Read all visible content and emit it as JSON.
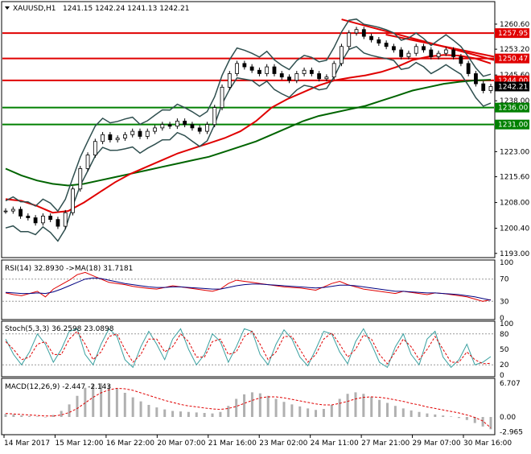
{
  "chart_data": [
    {
      "panel": "price",
      "type": "candlestick",
      "header": {
        "symbol_tf": "XAUUSD,H1",
        "ohlc": "1241.15 1242.24 1241.13 1242.21"
      },
      "price_labels": [
        "1260.60",
        "1253.20",
        "1245.60",
        "1238.00",
        "1230.60",
        "1223.00",
        "1215.60",
        "1208.00",
        "1200.40",
        "1193.00"
      ],
      "ylim": [
        1192.0,
        1267.0
      ],
      "tags": [
        {
          "text": "1257.95",
          "value": 1257.95,
          "color": "#e00000",
          "text_color": "#ffffff"
        },
        {
          "text": "1250.47",
          "value": 1250.47,
          "color": "#e00000",
          "text_color": "#ffffff"
        },
        {
          "text": "1244.00",
          "value": 1244.0,
          "color": "#e00000",
          "text_color": "#ffffff"
        },
        {
          "text": "1242.21",
          "value": 1242.21,
          "color": "#000000",
          "text_color": "#ffffff"
        },
        {
          "text": "1236.00",
          "value": 1236.0,
          "color": "#008000",
          "text_color": "#ffffff"
        },
        {
          "text": "1231.00",
          "value": 1231.0,
          "color": "#008000",
          "text_color": "#ffffff"
        }
      ],
      "hlines": [
        {
          "value": 1257.95,
          "color": "#e00000"
        },
        {
          "value": 1250.47,
          "color": "#e00000"
        },
        {
          "value": 1244.0,
          "color": "#e00000"
        },
        {
          "value": 1236.0,
          "color": "#008000"
        },
        {
          "value": 1231.0,
          "color": "#008000"
        }
      ],
      "close_path": [
        1205.5,
        1206,
        1204,
        1203.5,
        1202,
        1204,
        1203,
        1201,
        1205,
        1212,
        1218,
        1222,
        1226,
        1228,
        1226.5,
        1227,
        1228,
        1229,
        1227.5,
        1229,
        1230,
        1231,
        1230.5,
        1232,
        1231,
        1230,
        1229,
        1231,
        1236,
        1242,
        1246,
        1249,
        1248,
        1247,
        1246,
        1248,
        1246,
        1245,
        1244,
        1246,
        1247,
        1246,
        1244.5,
        1245,
        1249,
        1254,
        1258,
        1259,
        1257,
        1256,
        1255,
        1254,
        1253,
        1251,
        1252,
        1254,
        1253,
        1251,
        1252,
        1253,
        1251,
        1249,
        1246,
        1243,
        1241,
        1242.2
      ],
      "sma200_path": [
        1218,
        1216,
        1214.5,
        1213.5,
        1213,
        1213.5,
        1214.5,
        1215.5,
        1216.5,
        1217.5,
        1218.5,
        1219.5,
        1220.5,
        1221.5,
        1223,
        1224.5,
        1226,
        1228,
        1230,
        1232,
        1233.5,
        1234.5,
        1235.5,
        1236.5,
        1238,
        1239.5,
        1241,
        1242,
        1243,
        1243.6,
        1244,
        1244.2
      ],
      "sma50_path": [
        1209,
        1208.5,
        1207,
        1205,
        1205.5,
        1208,
        1211,
        1214,
        1216.5,
        1218.5,
        1220.5,
        1222.5,
        1224,
        1225.5,
        1227,
        1229,
        1232,
        1236,
        1238.5,
        1240.5,
        1242.5,
        1244,
        1244.8,
        1245.5,
        1246.5,
        1248,
        1250,
        1251,
        1251.5,
        1251.3,
        1250.5,
        1249
      ],
      "trendlines": [
        {
          "from": [
            0.69,
            1262.0
          ],
          "to": [
            1.0,
            1250.0
          ],
          "color": "#e00000"
        },
        {
          "from": [
            0.78,
            1257.5
          ],
          "to": [
            1.0,
            1251.0
          ],
          "color": "#e00000"
        }
      ],
      "x_labels": [
        "14 Mar 2017",
        "15 Mar 12:00",
        "16 Mar 22:00",
        "20 Mar 07:00",
        "21 Mar 16:00",
        "23 Mar 02:00",
        "24 Mar 11:00",
        "27 Mar 21:00",
        "29 Mar 07:00",
        "30 Mar 16:00"
      ]
    },
    {
      "panel": "rsi",
      "type": "line",
      "header": "RSI(14) 32.8930  ->MA(18) 31.7181",
      "ylim": [
        0,
        100
      ],
      "levels": [
        70,
        30
      ],
      "tick_labels": [
        "100",
        "70",
        "30",
        "0"
      ],
      "series": [
        {
          "color": "#e00000",
          "values": [
            45,
            42,
            40,
            44,
            48,
            38,
            52,
            60,
            68,
            78,
            82,
            76,
            70,
            64,
            62,
            60,
            57,
            55,
            53,
            52,
            55,
            58,
            56,
            54,
            52,
            50,
            48,
            52,
            62,
            68,
            66,
            64,
            62,
            60,
            58,
            56,
            55,
            54,
            52,
            50,
            56,
            62,
            66,
            60,
            56,
            52,
            50,
            48,
            46,
            44,
            48,
            46,
            44,
            42,
            45,
            44,
            42,
            40,
            38,
            34,
            30,
            33
          ]
        },
        {
          "color": "#000080",
          "values": [
            46,
            45,
            44,
            44,
            45,
            44,
            47,
            52,
            58,
            64,
            70,
            72,
            71,
            68,
            65,
            62,
            60,
            58,
            56,
            55,
            55,
            56,
            56,
            55,
            54,
            53,
            52,
            52,
            55,
            58,
            60,
            61,
            61,
            60,
            59,
            58,
            57,
            56,
            55,
            54,
            55,
            57,
            59,
            59,
            58,
            56,
            54,
            52,
            50,
            48,
            48,
            47,
            46,
            45,
            45,
            44,
            43,
            42,
            40,
            38,
            35,
            32
          ]
        }
      ]
    },
    {
      "panel": "stochastic",
      "type": "line",
      "header": "Stoch(5,3,3) 36.2598 23.0898",
      "ylim": [
        0,
        100
      ],
      "levels": [
        80,
        20
      ],
      "tick_labels": [
        "100",
        "80",
        "50",
        "20",
        "0"
      ],
      "series": [
        {
          "color": "#3aa0a0",
          "values": [
            70,
            40,
            20,
            45,
            80,
            60,
            25,
            50,
            85,
            90,
            40,
            20,
            60,
            90,
            75,
            30,
            15,
            55,
            85,
            60,
            30,
            70,
            90,
            50,
            20,
            40,
            80,
            65,
            25,
            55,
            90,
            85,
            40,
            20,
            60,
            88,
            70,
            35,
            18,
            50,
            85,
            80,
            45,
            22,
            65,
            90,
            60,
            25,
            15,
            55,
            80,
            40,
            20,
            70,
            85,
            35,
            15,
            30,
            60,
            20,
            25,
            36
          ]
        },
        {
          "color": "#e00000",
          "values": [
            65,
            50,
            30,
            35,
            60,
            65,
            40,
            40,
            70,
            85,
            60,
            30,
            45,
            75,
            80,
            50,
            25,
            40,
            70,
            70,
            45,
            55,
            80,
            65,
            35,
            35,
            65,
            70,
            40,
            45,
            75,
            85,
            60,
            30,
            45,
            75,
            75,
            50,
            25,
            40,
            70,
            82,
            60,
            35,
            50,
            78,
            70,
            40,
            22,
            45,
            70,
            55,
            30,
            50,
            75,
            50,
            25,
            25,
            45,
            30,
            22,
            23
          ]
        }
      ]
    },
    {
      "panel": "macd",
      "type": "bar",
      "header": "MACD(12,26,9) -2.447 -2.143",
      "ylim": [
        -3.2,
        7.2
      ],
      "tick_labels": [
        "6.707",
        "0.00",
        "-2.965"
      ],
      "histogram": [
        0.6,
        0.5,
        0.3,
        0.2,
        0.1,
        0.0,
        0.4,
        1.2,
        2.5,
        4.2,
        5.8,
        6.5,
        6.7,
        6.4,
        5.6,
        4.8,
        3.9,
        3.1,
        2.4,
        1.9,
        1.5,
        1.2,
        1.1,
        1.0,
        0.9,
        0.8,
        0.7,
        1.0,
        2.2,
        3.6,
        4.5,
        4.9,
        4.7,
        4.2,
        3.6,
        3.0,
        2.5,
        2.1,
        1.7,
        1.4,
        1.6,
        2.4,
        3.6,
        4.6,
        4.9,
        4.6,
        4.0,
        3.4,
        2.8,
        2.2,
        1.7,
        1.3,
        1.0,
        0.7,
        0.5,
        0.3,
        0.1,
        -0.2,
        -0.6,
        -1.2,
        -1.9,
        -2.45
      ],
      "signal": [
        0.7,
        0.6,
        0.5,
        0.4,
        0.3,
        0.2,
        0.2,
        0.4,
        0.9,
        1.7,
        2.8,
        3.9,
        4.8,
        5.4,
        5.7,
        5.6,
        5.3,
        4.8,
        4.3,
        3.8,
        3.3,
        2.9,
        2.5,
        2.2,
        2.0,
        1.8,
        1.6,
        1.5,
        1.7,
        2.1,
        2.7,
        3.3,
        3.8,
        4.0,
        4.0,
        3.8,
        3.5,
        3.2,
        2.9,
        2.6,
        2.4,
        2.4,
        2.7,
        3.1,
        3.6,
        3.9,
        4.0,
        3.9,
        3.7,
        3.4,
        3.1,
        2.7,
        2.4,
        2.0,
        1.7,
        1.4,
        1.1,
        0.8,
        0.4,
        -0.1,
        -0.8,
        -2.14
      ]
    }
  ]
}
